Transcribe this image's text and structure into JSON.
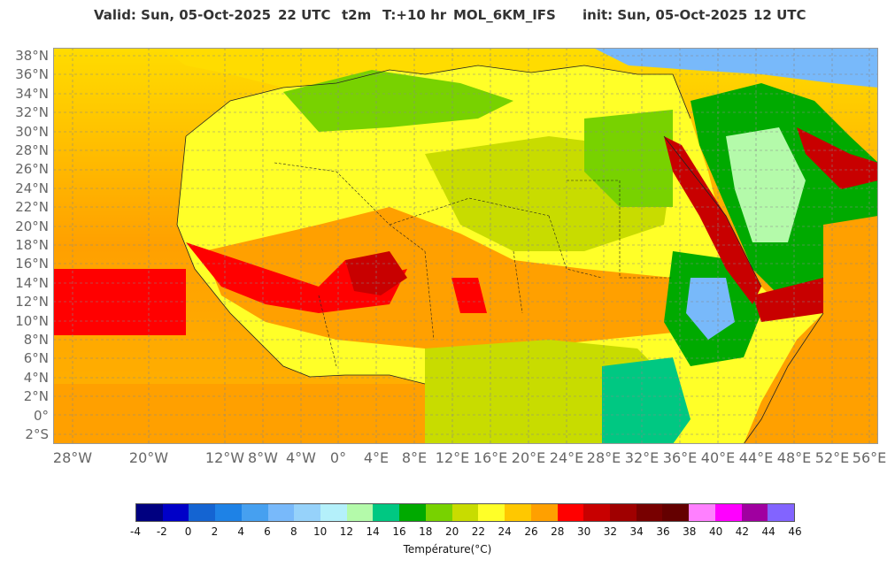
{
  "header": {
    "valid": "Valid: Sun, 05-Oct-2025",
    "valid_time": "22 UTC",
    "variable": "t2m",
    "lead": "T:+10 hr",
    "model": "MOL_6KM_IFS",
    "init": "init: Sun, 05-Oct-2025",
    "init_time": "12 UTC"
  },
  "lat_labels": [
    "38°N",
    "36°N",
    "34°N",
    "32°N",
    "30°N",
    "28°N",
    "26°N",
    "24°N",
    "22°N",
    "20°N",
    "18°N",
    "16°N",
    "14°N",
    "12°N",
    "10°N",
    "8°N",
    "6°N",
    "4°N",
    "2°N",
    "0°",
    "2°S"
  ],
  "lon_labels": [
    "28°W",
    "20°W",
    "12°W",
    "8°W",
    "4°W",
    "0°",
    "4°E",
    "8°E",
    "12°E",
    "16°E",
    "20°E",
    "24°E",
    "28°E",
    "32°E",
    "36°E",
    "40°E",
    "44°E",
    "48°E",
    "52°E",
    "56°E"
  ],
  "colorbar": {
    "ticks": [
      "-4",
      "-2",
      "0",
      "2",
      "4",
      "6",
      "8",
      "10",
      "12",
      "14",
      "16",
      "18",
      "20",
      "22",
      "24",
      "26",
      "28",
      "30",
      "32",
      "34",
      "36",
      "38",
      "40",
      "42",
      "44",
      "46"
    ],
    "colors": [
      "#000080",
      "#0000c8",
      "#1464d2",
      "#1e82e6",
      "#46a0f0",
      "#78b9fa",
      "#96d2fa",
      "#b4f0fa",
      "#b4faaa",
      "#00c882",
      "#00aa00",
      "#78d200",
      "#c8dc00",
      "#ffff28",
      "#ffc800",
      "#ffa000",
      "#ff0000",
      "#c80000",
      "#a00000",
      "#780000",
      "#640000",
      "#ff80ff",
      "#ff00ff",
      "#a000a0",
      "#8264ff"
    ],
    "label": "Température(°C)"
  }
}
